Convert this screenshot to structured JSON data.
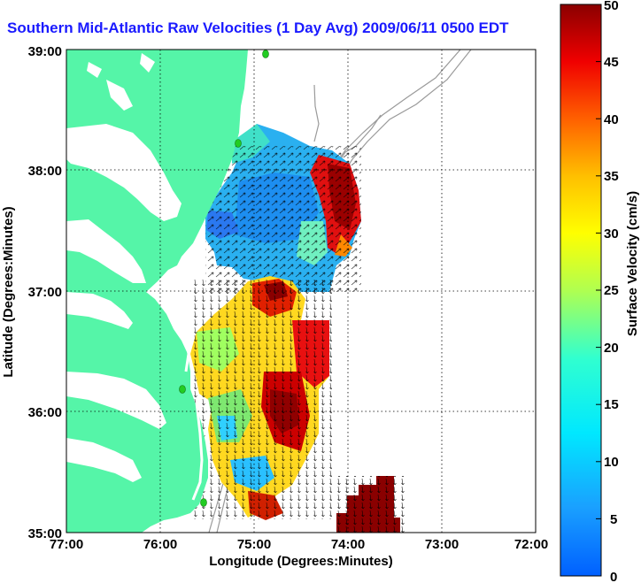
{
  "title": "Southern Mid-Atlantic Raw Velocities (1 Day Avg) 2009/06/11 0500 EDT",
  "xaxis": {
    "label": "Longitude (Degrees:Minutes)",
    "ticks": [
      "77:00",
      "76:00",
      "75:00",
      "74:00",
      "73:00",
      "72:00"
    ]
  },
  "yaxis": {
    "label": "Latitude (Degrees:Minutes)",
    "ticks": [
      "39:00",
      "38:00",
      "37:00",
      "36:00",
      "35:00"
    ]
  },
  "colorbar": {
    "label": "Surface Velocity (cm/s)",
    "ticks": [
      "50",
      "45",
      "40",
      "35",
      "30",
      "25",
      "20",
      "15",
      "10",
      "5",
      "0"
    ]
  },
  "colors": {
    "land": "#55f5a8",
    "title": "#1a1aff",
    "water": "#ffffff",
    "bathymetry": "#9a9a9a",
    "station": "#22cc22"
  }
}
